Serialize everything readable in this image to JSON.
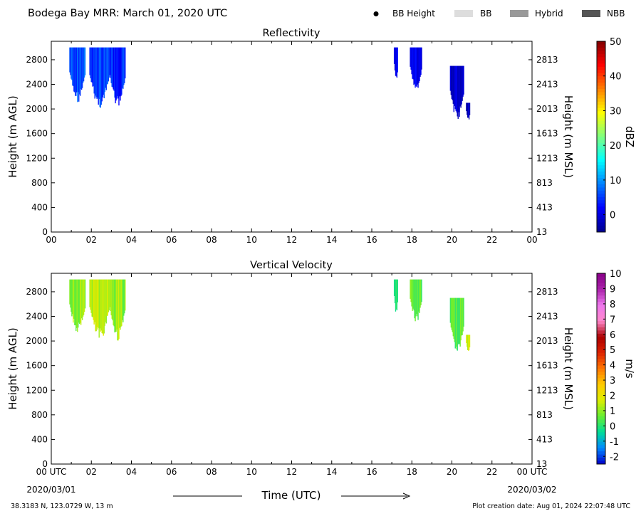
{
  "header": {
    "title": "Bodega Bay MRR:  March 01, 2020 UTC",
    "legend": [
      {
        "label": "BB Height",
        "kind": "dot",
        "color": "#000000"
      },
      {
        "label": "BB",
        "kind": "box",
        "color": "#dddddd"
      },
      {
        "label": "Hybrid",
        "kind": "box",
        "color": "#999999"
      },
      {
        "label": "NBB",
        "kind": "box",
        "color": "#555555"
      }
    ]
  },
  "footer": {
    "location": "38.3183 N, 123.0729 W, 13 m",
    "created": "Plot creation date: Aug 01, 2024 22:07:48 UTC",
    "time_label": "Time (UTC)",
    "start_date": "2020/03/01",
    "end_date": "2020/03/02"
  },
  "chart_data": [
    {
      "type": "heatmap",
      "title": "Reflectivity",
      "ylabel": "Height (m AGL)",
      "ylabel_right": "Height (m MSL)",
      "colorbar_label": "dBZ",
      "xlim": [
        0,
        24
      ],
      "ylim": [
        0,
        3100
      ],
      "x_ticks": [
        "00",
        "02",
        "04",
        "06",
        "08",
        "10",
        "12",
        "14",
        "16",
        "18",
        "20",
        "22",
        "00"
      ],
      "y_ticks": [
        0,
        400,
        800,
        1200,
        1600,
        2000,
        2400,
        2800
      ],
      "y_ticks_right": [
        13,
        413,
        813,
        1213,
        1613,
        2013,
        2413,
        2813
      ],
      "clim": [
        -5,
        50
      ],
      "colorbar_ticks": [
        0,
        10,
        20,
        30,
        40,
        50
      ],
      "colormap": [
        "#00008f",
        "#0000ff",
        "#007fff",
        "#00ffff",
        "#7fff7f",
        "#ffff00",
        "#ff7f00",
        "#ff0000",
        "#7f0000"
      ],
      "echoes": [
        {
          "t_start": 0.9,
          "t_end": 1.7,
          "top_m": 3000,
          "base_m": 2100,
          "dbz": 6
        },
        {
          "t_start": 1.9,
          "t_end": 2.9,
          "top_m": 3000,
          "base_m": 2000,
          "dbz": 5
        },
        {
          "t_start": 2.9,
          "t_end": 3.7,
          "top_m": 3000,
          "base_m": 2000,
          "dbz": 4
        },
        {
          "t_start": 17.1,
          "t_end": 17.3,
          "top_m": 3000,
          "base_m": 2400,
          "dbz": 1
        },
        {
          "t_start": 17.9,
          "t_end": 18.5,
          "top_m": 3000,
          "base_m": 2300,
          "dbz": 0
        },
        {
          "t_start": 19.9,
          "t_end": 20.6,
          "top_m": 2700,
          "base_m": 1800,
          "dbz": -1
        },
        {
          "t_start": 20.7,
          "t_end": 20.9,
          "top_m": 2100,
          "base_m": 1800,
          "dbz": -1
        }
      ]
    },
    {
      "type": "heatmap",
      "title": "Vertical Velocity",
      "ylabel": "Height (m AGL)",
      "ylabel_right": "Height (m MSL)",
      "colorbar_label": "m/s",
      "xlim": [
        0,
        24
      ],
      "ylim": [
        0,
        3100
      ],
      "x_ticks": [
        "00 UTC",
        "02",
        "04",
        "06",
        "08",
        "10",
        "12",
        "14",
        "16",
        "18",
        "20",
        "22",
        "00 UTC"
      ],
      "y_ticks": [
        0,
        400,
        800,
        1200,
        1600,
        2000,
        2400,
        2800
      ],
      "y_ticks_right": [
        13,
        413,
        813,
        1213,
        1613,
        2013,
        2413,
        2813
      ],
      "clim": [
        -2.5,
        10
      ],
      "colorbar_ticks": [
        -2,
        -1,
        0,
        1,
        2,
        3,
        4,
        5,
        6,
        7,
        8,
        9,
        10
      ],
      "colormap": [
        "#0000cc",
        "#0088ff",
        "#00dd99",
        "#66ee33",
        "#ddee00",
        "#ffcc00",
        "#ff7700",
        "#dd2200",
        "#aa0000",
        "#ff88cc",
        "#ee77ee",
        "#aa22aa",
        "#880088"
      ],
      "echoes": [
        {
          "t_start": 0.9,
          "t_end": 1.7,
          "top_m": 3000,
          "base_m": 2100,
          "w": 1
        },
        {
          "t_start": 1.9,
          "t_end": 2.9,
          "top_m": 3000,
          "base_m": 2000,
          "w": 1.3
        },
        {
          "t_start": 2.9,
          "t_end": 3.7,
          "top_m": 3000,
          "base_m": 2000,
          "w": 1
        },
        {
          "t_start": 17.1,
          "t_end": 17.3,
          "top_m": 3000,
          "base_m": 2400,
          "w": 0.3
        },
        {
          "t_start": 17.9,
          "t_end": 18.5,
          "top_m": 3000,
          "base_m": 2300,
          "w": 0.6
        },
        {
          "t_start": 19.9,
          "t_end": 20.6,
          "top_m": 2700,
          "base_m": 1800,
          "w": 0.5
        },
        {
          "t_start": 20.7,
          "t_end": 20.9,
          "top_m": 2100,
          "base_m": 1800,
          "w": 1.5
        }
      ]
    }
  ]
}
